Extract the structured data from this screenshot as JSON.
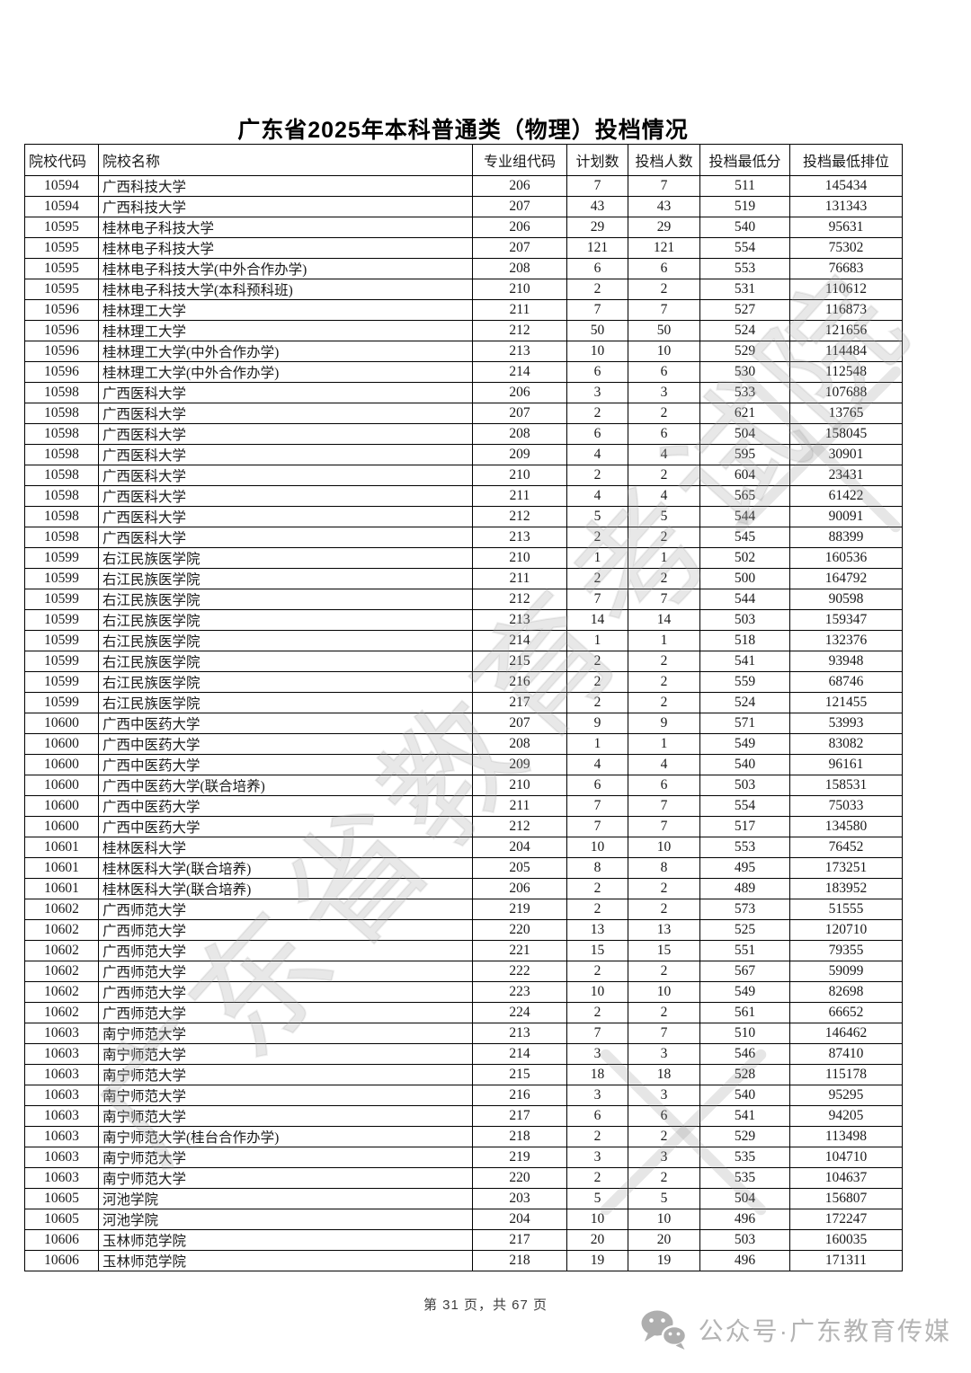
{
  "page": {
    "title": "广东省2025年本科普通类（物理）投档情况",
    "footer_page_text": "第 31 页，共 67 页"
  },
  "watermark": {
    "text": "广东省教育考试院"
  },
  "badge": {
    "icon": "wechat-icon",
    "text": "公众号·广东教育传媒"
  },
  "colors": {
    "border": "#000000",
    "table_text": "#191919",
    "watermark_gray": "#a5a5a5",
    "badge_gray": "#b4b4b4",
    "footer_text": "#3d3d3d"
  },
  "table": {
    "headers": [
      "院校代码",
      "院校名称",
      "专业组代码",
      "计划数",
      "投档人数",
      "投档最低分",
      "投档最低排位"
    ],
    "column_keys": [
      "institution-code",
      "institution-name",
      "major-group-code",
      "plan-count",
      "filed-count",
      "min-score",
      "min-rank"
    ],
    "rows": [
      [
        "10594",
        "广西科技大学",
        "206",
        "7",
        "7",
        "511",
        "145434"
      ],
      [
        "10594",
        "广西科技大学",
        "207",
        "43",
        "43",
        "519",
        "131343"
      ],
      [
        "10595",
        "桂林电子科技大学",
        "206",
        "29",
        "29",
        "540",
        "95631"
      ],
      [
        "10595",
        "桂林电子科技大学",
        "207",
        "121",
        "121",
        "554",
        "75302"
      ],
      [
        "10595",
        "桂林电子科技大学(中外合作办学)",
        "208",
        "6",
        "6",
        "553",
        "76683"
      ],
      [
        "10595",
        "桂林电子科技大学(本科预科班)",
        "210",
        "2",
        "2",
        "531",
        "110612"
      ],
      [
        "10596",
        "桂林理工大学",
        "211",
        "7",
        "7",
        "527",
        "116873"
      ],
      [
        "10596",
        "桂林理工大学",
        "212",
        "50",
        "50",
        "524",
        "121656"
      ],
      [
        "10596",
        "桂林理工大学(中外合作办学)",
        "213",
        "10",
        "10",
        "529",
        "114484"
      ],
      [
        "10596",
        "桂林理工大学(中外合作办学)",
        "214",
        "6",
        "6",
        "530",
        "112548"
      ],
      [
        "10598",
        "广西医科大学",
        "206",
        "3",
        "3",
        "533",
        "107688"
      ],
      [
        "10598",
        "广西医科大学",
        "207",
        "2",
        "2",
        "621",
        "13765"
      ],
      [
        "10598",
        "广西医科大学",
        "208",
        "6",
        "6",
        "504",
        "158045"
      ],
      [
        "10598",
        "广西医科大学",
        "209",
        "4",
        "4",
        "595",
        "30901"
      ],
      [
        "10598",
        "广西医科大学",
        "210",
        "2",
        "2",
        "604",
        "23431"
      ],
      [
        "10598",
        "广西医科大学",
        "211",
        "4",
        "4",
        "565",
        "61422"
      ],
      [
        "10598",
        "广西医科大学",
        "212",
        "5",
        "5",
        "544",
        "90091"
      ],
      [
        "10598",
        "广西医科大学",
        "213",
        "2",
        "2",
        "545",
        "88399"
      ],
      [
        "10599",
        "右江民族医学院",
        "210",
        "1",
        "1",
        "502",
        "160536"
      ],
      [
        "10599",
        "右江民族医学院",
        "211",
        "2",
        "2",
        "500",
        "164792"
      ],
      [
        "10599",
        "右江民族医学院",
        "212",
        "7",
        "7",
        "544",
        "90598"
      ],
      [
        "10599",
        "右江民族医学院",
        "213",
        "14",
        "14",
        "503",
        "159347"
      ],
      [
        "10599",
        "右江民族医学院",
        "214",
        "1",
        "1",
        "518",
        "132376"
      ],
      [
        "10599",
        "右江民族医学院",
        "215",
        "2",
        "2",
        "541",
        "93948"
      ],
      [
        "10599",
        "右江民族医学院",
        "216",
        "2",
        "2",
        "559",
        "68746"
      ],
      [
        "10599",
        "右江民族医学院",
        "217",
        "2",
        "2",
        "524",
        "121455"
      ],
      [
        "10600",
        "广西中医药大学",
        "207",
        "9",
        "9",
        "571",
        "53993"
      ],
      [
        "10600",
        "广西中医药大学",
        "208",
        "1",
        "1",
        "549",
        "83082"
      ],
      [
        "10600",
        "广西中医药大学",
        "209",
        "4",
        "4",
        "540",
        "96161"
      ],
      [
        "10600",
        "广西中医药大学(联合培养)",
        "210",
        "6",
        "6",
        "503",
        "158531"
      ],
      [
        "10600",
        "广西中医药大学",
        "211",
        "7",
        "7",
        "554",
        "75033"
      ],
      [
        "10600",
        "广西中医药大学",
        "212",
        "7",
        "7",
        "517",
        "134580"
      ],
      [
        "10601",
        "桂林医科大学",
        "204",
        "10",
        "10",
        "553",
        "76452"
      ],
      [
        "10601",
        "桂林医科大学(联合培养)",
        "205",
        "8",
        "8",
        "495",
        "173251"
      ],
      [
        "10601",
        "桂林医科大学(联合培养)",
        "206",
        "2",
        "2",
        "489",
        "183952"
      ],
      [
        "10602",
        "广西师范大学",
        "219",
        "2",
        "2",
        "573",
        "51555"
      ],
      [
        "10602",
        "广西师范大学",
        "220",
        "13",
        "13",
        "525",
        "120710"
      ],
      [
        "10602",
        "广西师范大学",
        "221",
        "15",
        "15",
        "551",
        "79355"
      ],
      [
        "10602",
        "广西师范大学",
        "222",
        "2",
        "2",
        "567",
        "59099"
      ],
      [
        "10602",
        "广西师范大学",
        "223",
        "10",
        "10",
        "549",
        "82698"
      ],
      [
        "10602",
        "广西师范大学",
        "224",
        "2",
        "2",
        "561",
        "66652"
      ],
      [
        "10603",
        "南宁师范大学",
        "213",
        "7",
        "7",
        "510",
        "146462"
      ],
      [
        "10603",
        "南宁师范大学",
        "214",
        "3",
        "3",
        "546",
        "87410"
      ],
      [
        "10603",
        "南宁师范大学",
        "215",
        "18",
        "18",
        "528",
        "115178"
      ],
      [
        "10603",
        "南宁师范大学",
        "216",
        "3",
        "3",
        "540",
        "95295"
      ],
      [
        "10603",
        "南宁师范大学",
        "217",
        "6",
        "6",
        "541",
        "94205"
      ],
      [
        "10603",
        "南宁师范大学(桂台合作办学)",
        "218",
        "2",
        "2",
        "529",
        "113498"
      ],
      [
        "10603",
        "南宁师范大学",
        "219",
        "3",
        "3",
        "535",
        "104710"
      ],
      [
        "10603",
        "南宁师范大学",
        "220",
        "2",
        "2",
        "535",
        "104637"
      ],
      [
        "10605",
        "河池学院",
        "203",
        "5",
        "5",
        "504",
        "156807"
      ],
      [
        "10605",
        "河池学院",
        "204",
        "10",
        "10",
        "496",
        "172247"
      ],
      [
        "10606",
        "玉林师范学院",
        "217",
        "20",
        "20",
        "503",
        "160035"
      ],
      [
        "10606",
        "玉林师范学院",
        "218",
        "19",
        "19",
        "496",
        "171311"
      ]
    ]
  }
}
